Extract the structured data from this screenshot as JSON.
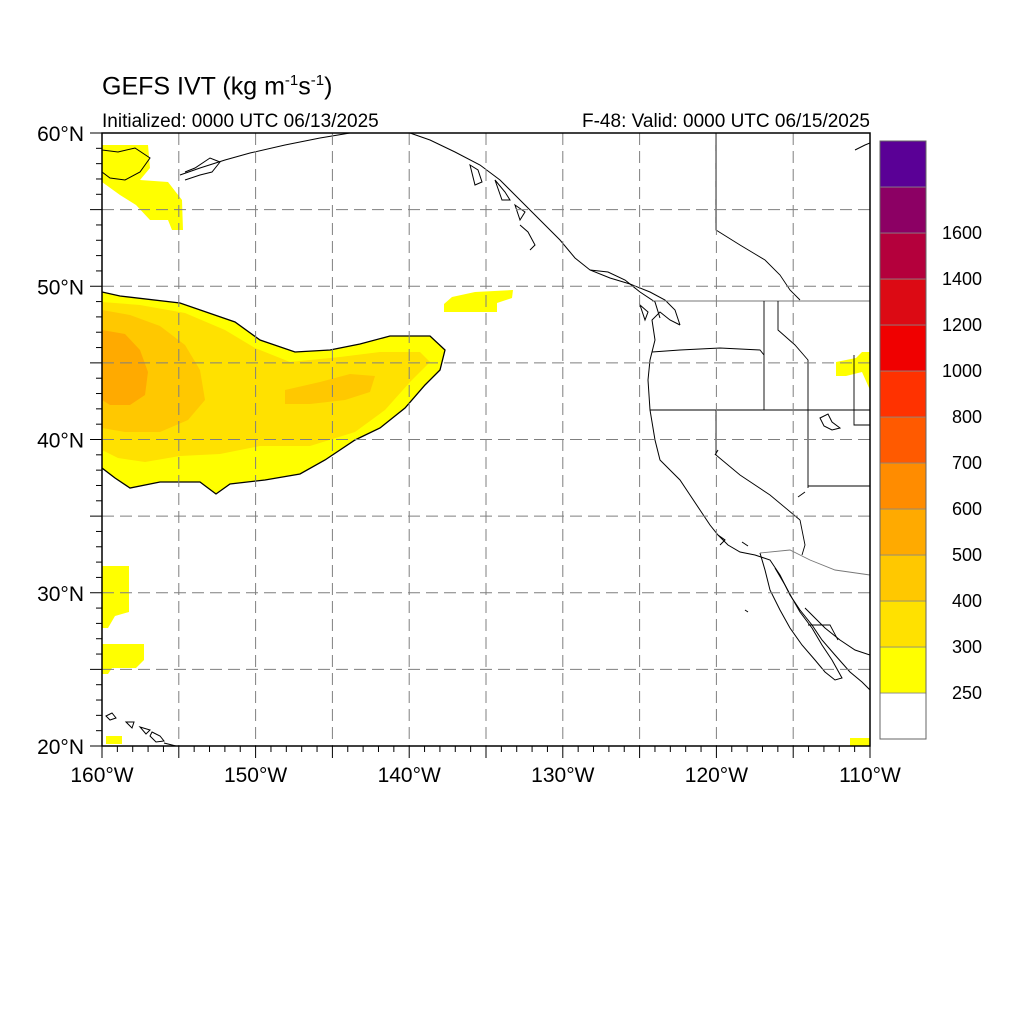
{
  "title": {
    "main": "GEFS IVT (kg m",
    "exp1": "-1",
    "mid": "s",
    "exp2": "-1",
    "end": ")"
  },
  "subtitle_left": "Initialized: 0000 UTC 06/13/2025",
  "subtitle_right": "F-48: Valid: 0000 UTC 06/15/2025",
  "map": {
    "lon_range": [
      -160,
      -110
    ],
    "lat_range": [
      20,
      60
    ],
    "x_ticks": [
      {
        "lon": -160,
        "label": "160°W"
      },
      {
        "lon": -150,
        "label": "150°W"
      },
      {
        "lon": -140,
        "label": "140°W"
      },
      {
        "lon": -130,
        "label": "130°W"
      },
      {
        "lon": -120,
        "label": "120°W"
      },
      {
        "lon": -110,
        "label": "110°W"
      }
    ],
    "y_ticks": [
      {
        "lat": 60,
        "label": "60°N"
      },
      {
        "lat": 50,
        "label": "50°N"
      },
      {
        "lat": 40,
        "label": "40°N"
      },
      {
        "lat": 30,
        "label": "30°N"
      },
      {
        "lat": 20,
        "label": "20°N"
      }
    ],
    "gridlines": "dashed every 5°"
  },
  "colorbar": {
    "levels": [
      {
        "label": "250",
        "color": "#ffffff"
      },
      {
        "label": "300",
        "color": "#ffff00"
      },
      {
        "label": "400",
        "color": "#ffe100"
      },
      {
        "label": "500",
        "color": "#ffc800"
      },
      {
        "label": "600",
        "color": "#ffaa00"
      },
      {
        "label": "700",
        "color": "#ff8c00"
      },
      {
        "label": "800",
        "color": "#ff5a00"
      },
      {
        "label": "1000",
        "color": "#ff3200"
      },
      {
        "label": "1200",
        "color": "#f00000"
      },
      {
        "label": "1400",
        "color": "#dc0a14"
      },
      {
        "label": "1600",
        "color": "#b4003c"
      },
      {
        "label": "",
        "color": "#8c0064"
      },
      {
        "label": "",
        "color": "#5a0096"
      }
    ]
  }
}
